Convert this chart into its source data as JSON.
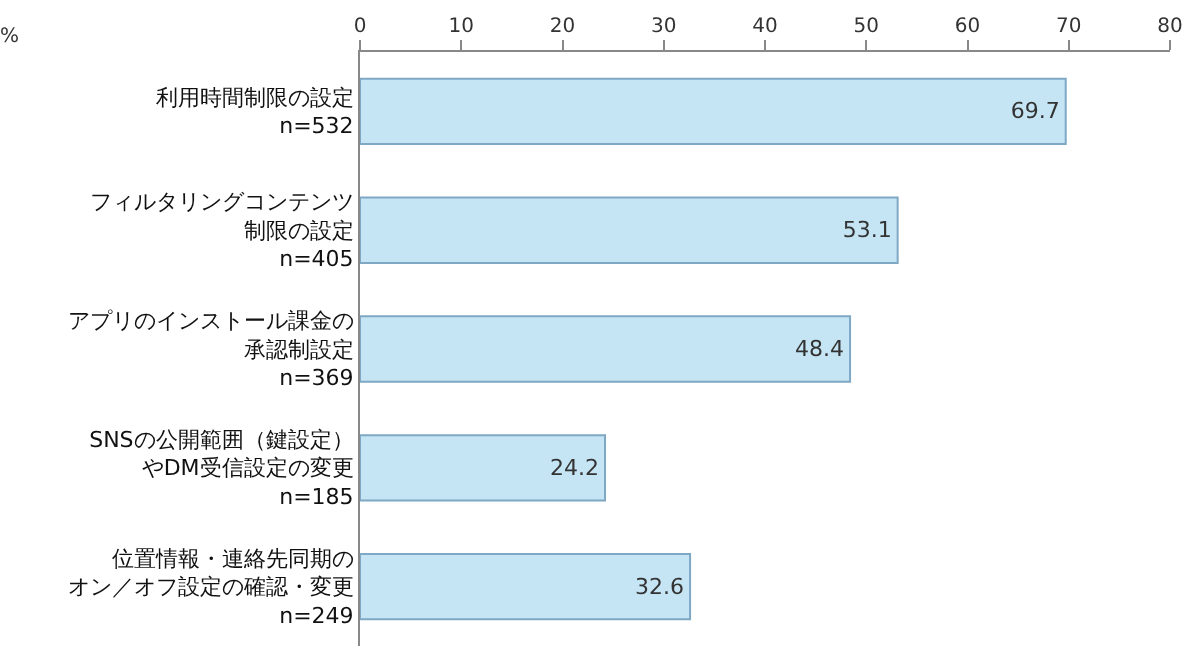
{
  "chart_data": {
    "type": "bar",
    "orientation": "horizontal",
    "xlabel": "%",
    "categories": [
      "利用時間制限の設定\nn=532",
      "フィルタリングコンテンツ制限の設定\nn=405",
      "アプリのインストール課金の承認制設定\nn=369",
      "SNSの公開範囲（鍵設定）やDM受信設定の変更\nn=185",
      "位置情報・連絡先同期のオン／オフ設定の確認・変更\nn=249"
    ],
    "values": [
      69.7,
      53.1,
      48.4,
      24.2,
      32.6
    ],
    "color": "#c5e5f5",
    "xlim": [
      0,
      80
    ],
    "xticks": [
      0,
      10,
      20,
      30,
      40,
      50,
      60,
      70,
      80
    ],
    "data_labels": true,
    "grid": false,
    "legend": false
  }
}
